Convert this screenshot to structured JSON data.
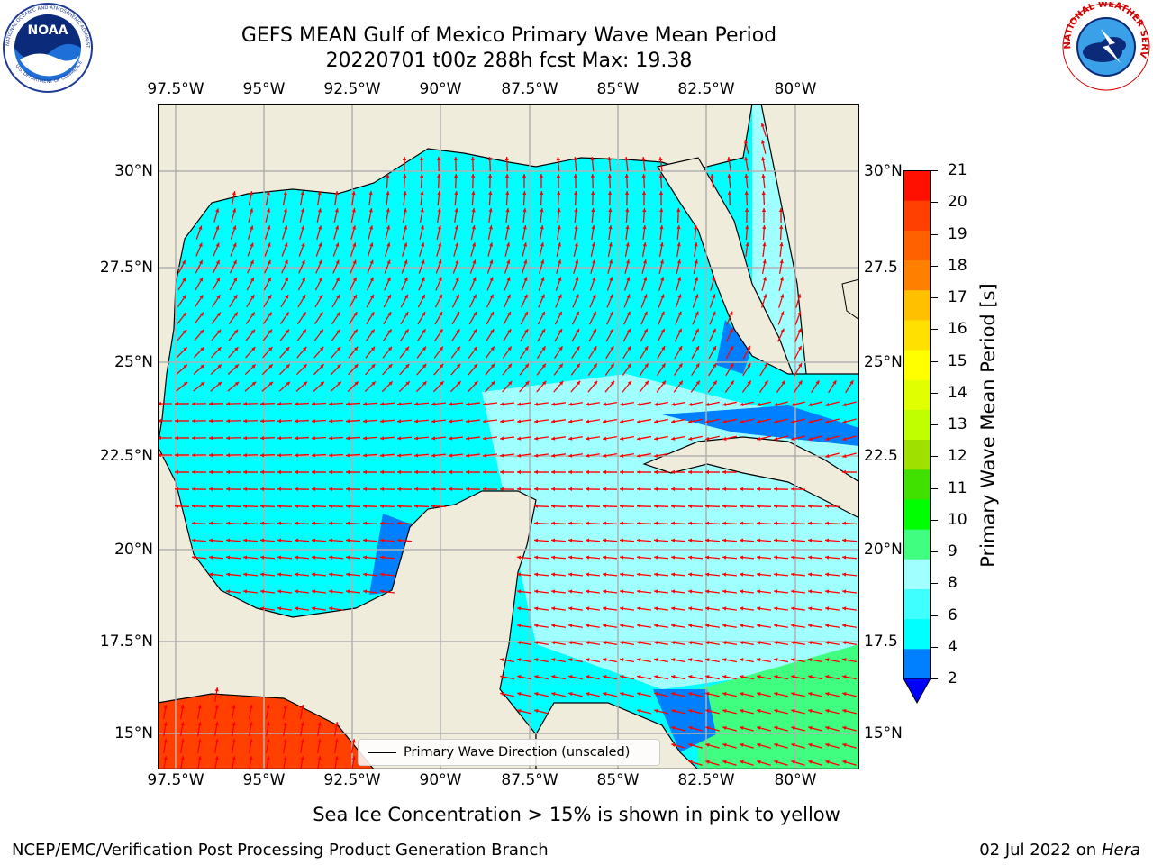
{
  "header": {
    "title_line1": "GEFS MEAN Gulf of Mexico Primary Wave Mean Period",
    "title_line2": "20220701 t00z 288h fcst   Max: 19.38"
  },
  "axes": {
    "lon_ticks": [
      "97.5°W",
      "95°W",
      "92.5°W",
      "90°W",
      "87.5°W",
      "85°W",
      "82.5°W",
      "80°W"
    ],
    "lat_ticks_left": [
      "30°N",
      "27.5°N",
      "25°N",
      "22.5°N",
      "20°N",
      "17.5°N",
      "15°N"
    ],
    "lat_ticks_right": [
      "30°N",
      "27.5",
      "25°N",
      "22.5",
      "20°N",
      "17.5",
      "15°N"
    ]
  },
  "legend": {
    "label": "Primary Wave Direction (unscaled)"
  },
  "colorbar": {
    "label": "Primary Wave Mean Period [s]",
    "ticks": [
      "21",
      "20",
      "19",
      "18",
      "17",
      "16",
      "15",
      "14",
      "13",
      "12",
      "11",
      "10",
      "9",
      "8",
      "6",
      "4",
      "2"
    ],
    "colors": [
      "#0000ff",
      "#0080ff",
      "#00ffff",
      "#40ffff",
      "#a0ffff",
      "#40ff80",
      "#00ff00",
      "#40e000",
      "#a0e000",
      "#c0ff00",
      "#e0ff00",
      "#ffff00",
      "#ffe000",
      "#ffc000",
      "#ff8000",
      "#ff6000",
      "#ff4000",
      "#ff1000"
    ]
  },
  "caption": "Sea Ice Concentration > 15% is shown in pink to yellow",
  "footer": {
    "left": "NCEP/EMC/Verification Post Processing Product Generation Branch",
    "right_date": "02 Jul 2022 on ",
    "right_host": "Hera"
  },
  "logos": {
    "noaa": {
      "ring_text": "NATIONAL OCEANIC AND ATMOSPHERIC ADMINISTRATION",
      "center": "NOAA",
      "bottom_text": "U.S. DEPARTMENT OF COMMERCE"
    },
    "nws": {
      "ring_text": "NATIONAL WEATHER SERVICE"
    }
  },
  "map_colors": {
    "land": "#efecdc",
    "coast": "#000000",
    "grid": "#b0b0b0",
    "arrow": "#ff0000"
  }
}
